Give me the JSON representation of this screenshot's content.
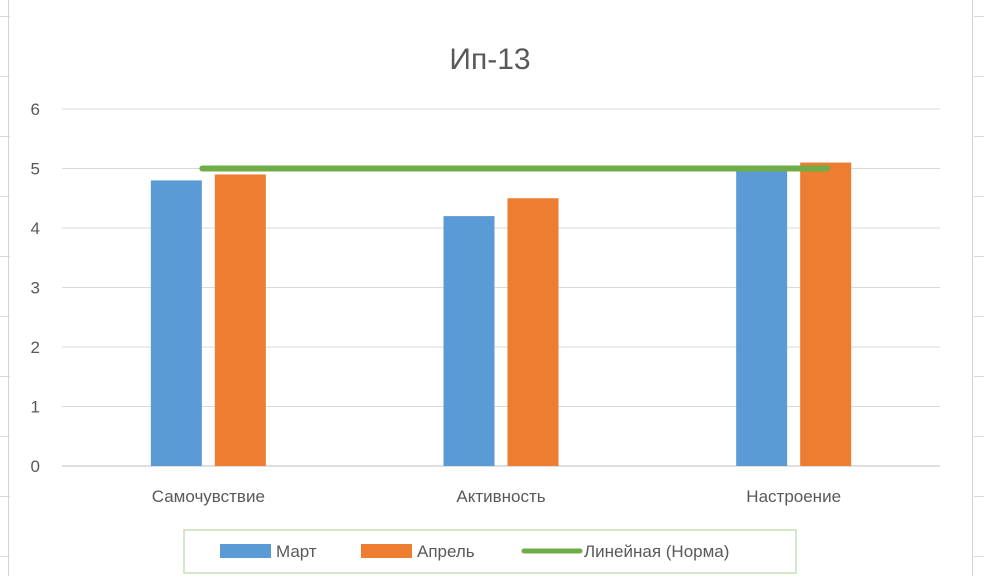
{
  "chart_data": {
    "type": "bar",
    "title": "Ип-13",
    "categories": [
      "Самочувствие",
      "Активность",
      "Настроение"
    ],
    "series": [
      {
        "name": "Март",
        "values": [
          4.8,
          4.2,
          5.0
        ],
        "color": "#5B9BD5",
        "kind": "bar"
      },
      {
        "name": "Апрель",
        "values": [
          4.9,
          4.5,
          5.1
        ],
        "color": "#ED7D31",
        "kind": "bar"
      },
      {
        "name": "Линейная (Норма)",
        "values": [
          5,
          5,
          5
        ],
        "color": "#70AD47",
        "kind": "line"
      }
    ],
    "yticks": [
      "0",
      "1",
      "2",
      "3",
      "4",
      "5",
      "6"
    ],
    "ylim": [
      0,
      6
    ],
    "xlabel": "",
    "ylabel": "",
    "grid": true,
    "legend_position": "bottom"
  }
}
